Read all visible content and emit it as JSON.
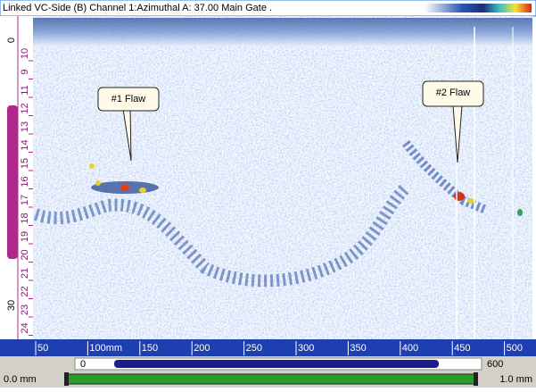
{
  "window": {
    "title": "Linked VC-Side (B) Channel 1:Azimuthal   A: 37.00 Main Gate ."
  },
  "scan": {
    "callouts": [
      "#1 Flaw",
      "#2 Flaw"
    ]
  },
  "left_ruler": {
    "outer_labels": [
      "0",
      "30"
    ],
    "inner_labels": [
      "10",
      "9",
      "11",
      "12",
      "13",
      "14",
      "15",
      "16",
      "17",
      "18",
      "19",
      "20",
      "21",
      "22",
      "23",
      "24"
    ]
  },
  "bottom_ruler": {
    "labels": [
      "50",
      "100mm",
      "150",
      "200",
      "250",
      "300",
      "350",
      "400",
      "450",
      "500"
    ]
  },
  "scroll_row": {
    "start": "0",
    "end": "600"
  },
  "status_row": {
    "left": "0.0 mm",
    "right": "1.0 mm"
  }
}
